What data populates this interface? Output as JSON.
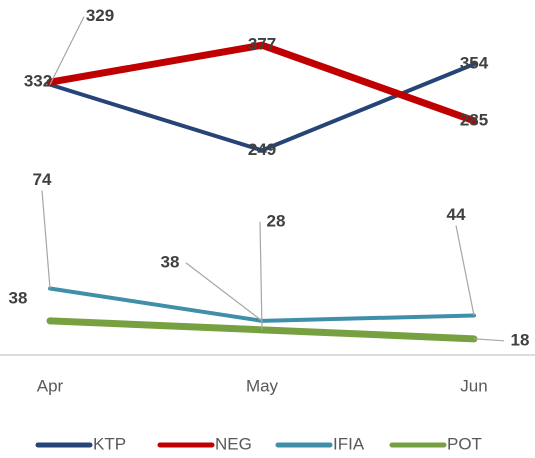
{
  "chart_data": {
    "type": "line",
    "categories": [
      "Apr",
      "May",
      "Jun"
    ],
    "series": [
      {
        "name": "KTP",
        "color": "#264478",
        "values": [
          329,
          249,
          354
        ]
      },
      {
        "name": "NEG",
        "color": "#c00000",
        "values": [
          332,
          377,
          285
        ]
      },
      {
        "name": "IFIA",
        "color": "#3f8fa8",
        "values": [
          74,
          38,
          44
        ],
        "axis": "y2"
      },
      {
        "name": "POT",
        "color": "#77a040",
        "values": [
          38,
          28,
          18
        ],
        "axis": "y2"
      }
    ],
    "ylim": [
      0,
      432
    ],
    "y2lim": [
      0,
      395
    ],
    "legend": "bottom"
  }
}
